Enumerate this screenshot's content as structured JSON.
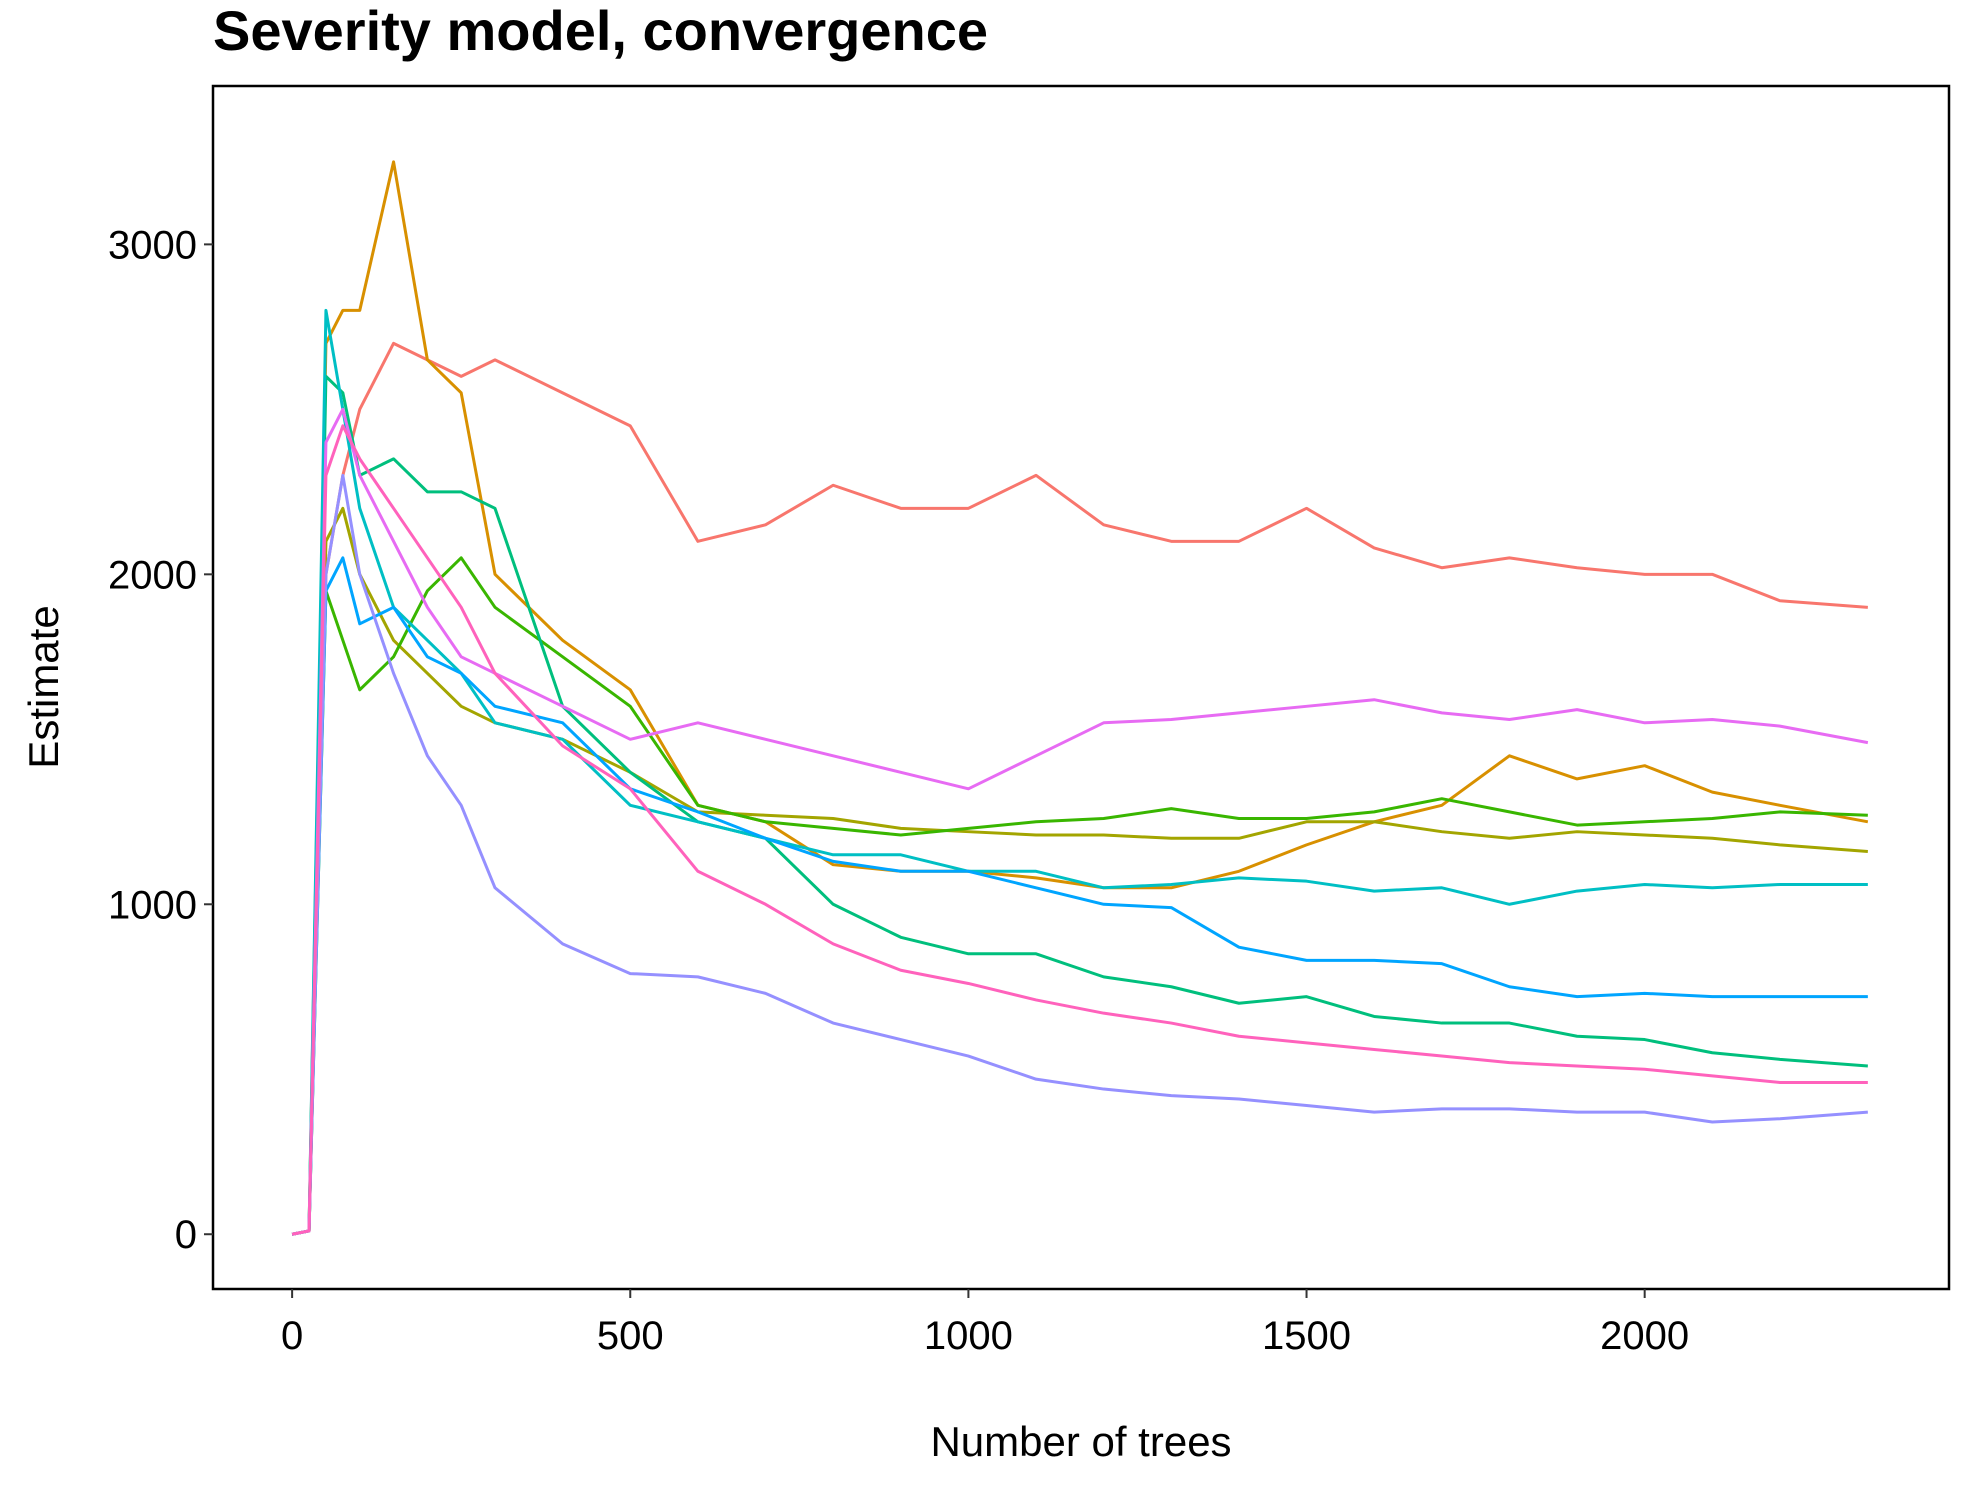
{
  "chart_data": {
    "type": "line",
    "title": "Severity model, convergence",
    "x_label": "Number of trees",
    "y_label": "Estimate",
    "x": [
      0,
      25,
      50,
      75,
      100,
      150,
      200,
      250,
      300,
      400,
      500,
      600,
      700,
      800,
      900,
      1000,
      1100,
      1200,
      1300,
      1400,
      1500,
      1600,
      1700,
      1800,
      1900,
      2000,
      2100,
      2200,
      2330
    ],
    "series": [
      {
        "color": "#F8766D",
        "values": [
          0,
          10,
          2000,
          2300,
          2500,
          2700,
          2650,
          2600,
          2650,
          2550,
          2450,
          2100,
          2150,
          2270,
          2200,
          2200,
          2300,
          2150,
          2100,
          2100,
          2200,
          2080,
          2020,
          2050,
          2020,
          2000,
          2000,
          1920,
          1900
        ]
      },
      {
        "color": "#D89000",
        "values": [
          0,
          10,
          2700,
          2800,
          2800,
          3250,
          2650,
          2550,
          2000,
          1800,
          1650,
          1300,
          1250,
          1120,
          1100,
          1100,
          1080,
          1050,
          1050,
          1100,
          1180,
          1250,
          1300,
          1450,
          1380,
          1420,
          1340,
          1300,
          1250
        ]
      },
      {
        "color": "#A3A500",
        "values": [
          0,
          10,
          2100,
          2200,
          2000,
          1800,
          1700,
          1600,
          1550,
          1500,
          1400,
          1280,
          1270,
          1260,
          1230,
          1220,
          1210,
          1210,
          1200,
          1200,
          1250,
          1250,
          1220,
          1200,
          1220,
          1210,
          1200,
          1180,
          1160
        ]
      },
      {
        "color": "#39B600",
        "values": [
          0,
          10,
          1950,
          1800,
          1650,
          1750,
          1950,
          2050,
          1900,
          1750,
          1600,
          1300,
          1250,
          1230,
          1210,
          1230,
          1250,
          1260,
          1290,
          1260,
          1260,
          1280,
          1320,
          1280,
          1240,
          1250,
          1260,
          1280,
          1270
        ]
      },
      {
        "color": "#00BF7D",
        "values": [
          0,
          10,
          2600,
          2550,
          2300,
          2350,
          2250,
          2250,
          2200,
          1600,
          1400,
          1250,
          1200,
          1000,
          900,
          850,
          850,
          780,
          750,
          700,
          720,
          660,
          640,
          640,
          600,
          590,
          550,
          530,
          510
        ]
      },
      {
        "color": "#00BFC4",
        "values": [
          0,
          10,
          2800,
          2500,
          2200,
          1900,
          1800,
          1700,
          1550,
          1500,
          1300,
          1250,
          1200,
          1150,
          1150,
          1100,
          1100,
          1050,
          1060,
          1080,
          1070,
          1040,
          1050,
          1000,
          1040,
          1060,
          1050,
          1060,
          1060
        ]
      },
      {
        "color": "#00A5FF",
        "values": [
          0,
          10,
          1950,
          2050,
          1850,
          1900,
          1750,
          1700,
          1600,
          1550,
          1350,
          1280,
          1200,
          1130,
          1100,
          1100,
          1050,
          1000,
          990,
          870,
          830,
          830,
          820,
          750,
          720,
          730,
          720,
          720,
          720
        ]
      },
      {
        "color": "#9590FF",
        "values": [
          0,
          10,
          2000,
          2300,
          2000,
          1700,
          1450,
          1300,
          1050,
          880,
          790,
          780,
          730,
          640,
          590,
          540,
          470,
          440,
          420,
          410,
          390,
          370,
          380,
          380,
          370,
          370,
          340,
          350,
          370
        ]
      },
      {
        "color": "#E76BF3",
        "values": [
          0,
          10,
          2400,
          2500,
          2300,
          2100,
          1900,
          1750,
          1700,
          1600,
          1500,
          1550,
          1500,
          1450,
          1400,
          1350,
          1450,
          1550,
          1560,
          1580,
          1600,
          1620,
          1580,
          1560,
          1590,
          1550,
          1560,
          1540,
          1490
        ]
      },
      {
        "color": "#FF62BC",
        "values": [
          0,
          10,
          2300,
          2450,
          2350,
          2200,
          2050,
          1900,
          1700,
          1480,
          1350,
          1100,
          1000,
          880,
          800,
          760,
          710,
          670,
          640,
          600,
          580,
          560,
          540,
          520,
          510,
          500,
          480,
          460,
          460
        ]
      }
    ],
    "xlim": [
      -117,
      2450
    ],
    "ylim": [
      -166,
      3480
    ],
    "xticks": [
      0,
      500,
      1000,
      1500,
      2000
    ],
    "yticks": [
      0,
      1000,
      2000,
      3000
    ],
    "grid": false
  }
}
